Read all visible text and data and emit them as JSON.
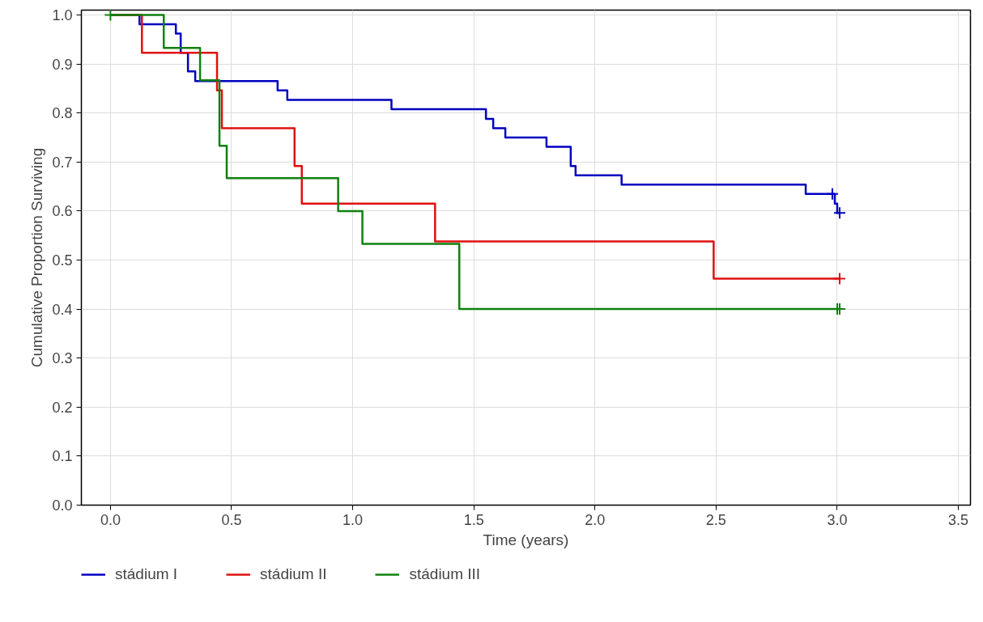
{
  "chart_data": {
    "type": "step",
    "xlabel": "Time (years)",
    "ylabel": "Cumulative Proportion Surviving",
    "xlim": [
      -0.12,
      3.55
    ],
    "ylim": [
      0.0,
      1.01
    ],
    "xticks": [
      {
        "value": 0,
        "label": "0.0"
      },
      0.5,
      {
        "value": 1,
        "label": "1.0"
      },
      1.5,
      {
        "value": 2,
        "label": "2.0"
      },
      2.5,
      {
        "value": 3,
        "label": "3.0"
      },
      3.5
    ],
    "yticks": [
      {
        "value": 0,
        "label": "0.0"
      },
      0.1,
      0.2,
      0.3,
      0.4,
      0.5,
      0.6,
      0.7,
      0.8,
      0.9,
      {
        "value": 1,
        "label": "1.0"
      }
    ],
    "grid": true,
    "legend": "bottom left",
    "line_style": "solid",
    "series": [
      {
        "name": "stádium I",
        "color": "#0000c0",
        "x": [
          0,
          0.12,
          0.27,
          0.29,
          0.32,
          0.35,
          0.69,
          0.73,
          1.16,
          1.55,
          1.58,
          1.63,
          1.8,
          1.9,
          1.92,
          2.11,
          2.87,
          2.99,
          3.0,
          3.01
        ],
        "values": [
          1.0,
          0.981,
          0.962,
          0.923,
          0.885,
          0.865,
          0.846,
          0.827,
          0.808,
          0.788,
          0.769,
          0.75,
          0.731,
          0.692,
          0.673,
          0.654,
          0.635,
          0.615,
          0.596,
          0.596
        ]
      },
      {
        "name": "stádium II",
        "color": "#e01010",
        "x": [
          0,
          0.13,
          0.44,
          0.46,
          0.76,
          0.79,
          1.34,
          2.49,
          3.01
        ],
        "values": [
          1.0,
          0.923,
          0.846,
          0.769,
          0.692,
          0.615,
          0.538,
          0.462,
          0.462
        ]
      },
      {
        "name": "stádium III",
        "color": "#108010",
        "x": [
          0,
          0.22,
          0.37,
          0.45,
          0.48,
          0.94,
          1.04,
          1.44,
          3.01
        ],
        "values": [
          1.0,
          0.933,
          0.867,
          0.733,
          0.667,
          0.6,
          0.533,
          0.4,
          0.4
        ]
      },
      {
        "type": "scatter",
        "marker": "cross",
        "color": "#0000c0",
        "x": [
          2.98,
          3.01
        ],
        "values": [
          0.635,
          0.596
        ]
      },
      {
        "type": "scatter",
        "marker": "cross",
        "color": "#e01010",
        "x": [
          3.01
        ],
        "values": [
          0.462
        ]
      },
      {
        "type": "scatter",
        "marker": "cross",
        "color": "#108010",
        "x": [
          0,
          3.0,
          3.01
        ],
        "values": [
          1.0,
          0.4,
          0.4
        ]
      }
    ]
  }
}
